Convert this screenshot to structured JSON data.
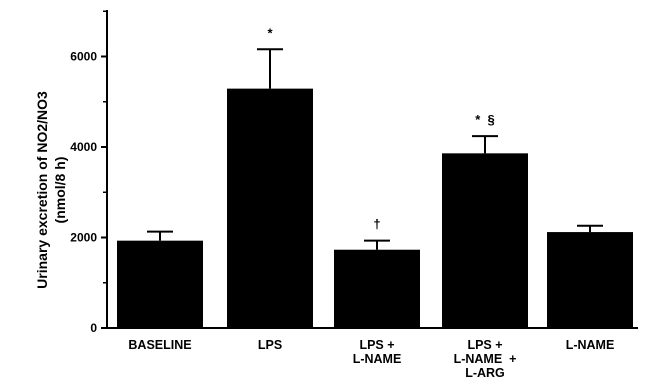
{
  "chart_data": {
    "type": "bar",
    "title": "",
    "xlabel": "",
    "ylabel": [
      "Urinary excretion of NO2/NO3",
      "(nmol/8 h)"
    ],
    "ylim": [
      0,
      7000
    ],
    "yticks": [
      0,
      2000,
      4000,
      6000
    ],
    "grid": false,
    "categories": [
      [
        "BASELINE"
      ],
      [
        "LPS"
      ],
      [
        "LPS +",
        "L-NAME"
      ],
      [
        "LPS +",
        "L-NAME  +",
        "L-ARG"
      ],
      [
        "L-NAME"
      ]
    ],
    "values": [
      1930,
      5290,
      1730,
      3860,
      2120
    ],
    "errors": [
      200,
      870,
      200,
      380,
      140
    ],
    "annotations": [
      "",
      "*",
      "†",
      "*  §",
      ""
    ],
    "colors": {
      "bar": "#000000",
      "axis": "#000000",
      "background": "#ffffff"
    }
  }
}
